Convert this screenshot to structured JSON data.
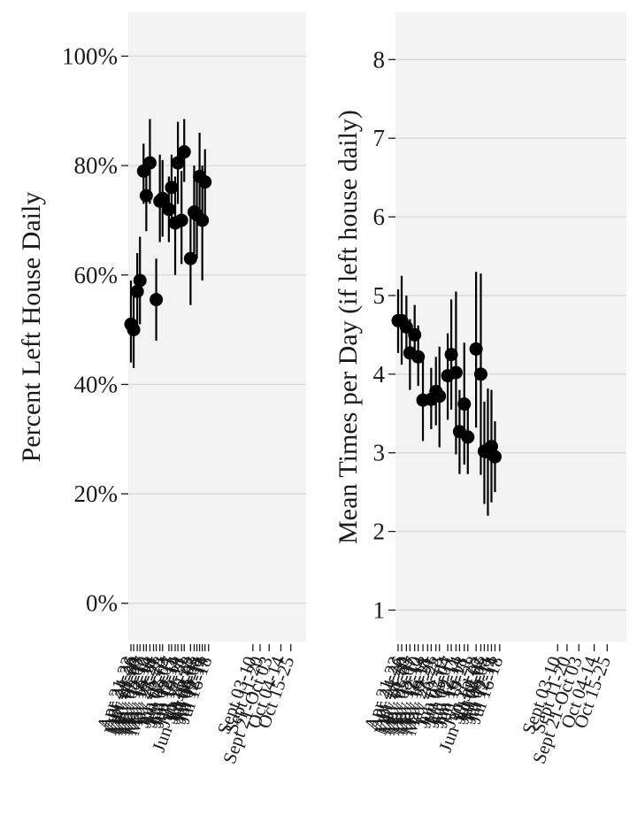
{
  "chart_data": [
    {
      "type": "scatter",
      "ylabel": "Percent Left House Daily",
      "y_format": "percent",
      "ylim": [
        -0.07,
        1.08
      ],
      "yticks": [
        0,
        0.2,
        0.4,
        0.6,
        0.8,
        1.0
      ],
      "ytick_labels": [
        "0%",
        "20%",
        "40%",
        "60%",
        "80%",
        "100%"
      ],
      "grid": true,
      "x_date_range": [
        "2020-04-21",
        "2020-10-29"
      ],
      "points": [
        {
          "date": "2020-04-21",
          "y": 0.51,
          "lo": 0.44,
          "hi": 0.59
        },
        {
          "date": "2020-04-24",
          "y": 0.5,
          "lo": 0.43,
          "hi": 0.57
        },
        {
          "date": "2020-04-28",
          "y": 0.57,
          "lo": 0.5,
          "hi": 0.64
        },
        {
          "date": "2020-05-01",
          "y": 0.59,
          "lo": 0.51,
          "hi": 0.67
        },
        {
          "date": "2020-05-05",
          "y": 0.79,
          "lo": 0.73,
          "hi": 0.84
        },
        {
          "date": "2020-05-08",
          "y": 0.745,
          "lo": 0.68,
          "hi": 0.81
        },
        {
          "date": "2020-05-12",
          "y": 0.805,
          "lo": 0.73,
          "hi": 0.885
        },
        {
          "date": "2020-05-19",
          "y": 0.555,
          "lo": 0.48,
          "hi": 0.63
        },
        {
          "date": "2020-05-23",
          "y": 0.735,
          "lo": 0.66,
          "hi": 0.82
        },
        {
          "date": "2020-05-26",
          "y": 0.74,
          "lo": 0.67,
          "hi": 0.81
        },
        {
          "date": "2020-06-02",
          "y": 0.72,
          "lo": 0.66,
          "hi": 0.78
        },
        {
          "date": "2020-06-05",
          "y": 0.76,
          "lo": 0.7,
          "hi": 0.82
        },
        {
          "date": "2020-06-09",
          "y": 0.695,
          "lo": 0.6,
          "hi": 0.78
        },
        {
          "date": "2020-06-12",
          "y": 0.805,
          "lo": 0.73,
          "hi": 0.88
        },
        {
          "date": "2020-06-16",
          "y": 0.7,
          "lo": 0.62,
          "hi": 0.79
        },
        {
          "date": "2020-06-19",
          "y": 0.825,
          "lo": 0.77,
          "hi": 0.885
        },
        {
          "date": "2020-06-26",
          "y": 0.63,
          "lo": 0.545,
          "hi": 0.72
        },
        {
          "date": "2020-06-30",
          "y": 0.715,
          "lo": 0.64,
          "hi": 0.8
        },
        {
          "date": "2020-07-03",
          "y": 0.71,
          "lo": 0.63,
          "hi": 0.78
        },
        {
          "date": "2020-07-06",
          "y": 0.78,
          "lo": 0.7,
          "hi": 0.86
        },
        {
          "date": "2020-07-09",
          "y": 0.7,
          "lo": 0.59,
          "hi": 0.8
        },
        {
          "date": "2020-07-12",
          "y": 0.77,
          "lo": 0.71,
          "hi": 0.83
        }
      ]
    },
    {
      "type": "scatter",
      "ylabel": "Mean Times per Day (if left house daily)",
      "y_format": "number",
      "ylim": [
        0.6,
        8.6
      ],
      "yticks": [
        1,
        2,
        3,
        4,
        5,
        6,
        7,
        8
      ],
      "ytick_labels": [
        "1",
        "2",
        "3",
        "4",
        "5",
        "6",
        "7",
        "8"
      ],
      "grid": true,
      "x_date_range": [
        "2020-04-21",
        "2020-10-29"
      ],
      "points": [
        {
          "date": "2020-04-21",
          "y": 4.68,
          "lo": 4.27,
          "hi": 5.08
        },
        {
          "date": "2020-04-24",
          "y": 4.68,
          "lo": 4.12,
          "hi": 5.25
        },
        {
          "date": "2020-04-28",
          "y": 4.6,
          "lo": 4.2,
          "hi": 5.0
        },
        {
          "date": "2020-05-01",
          "y": 4.27,
          "lo": 3.8,
          "hi": 4.7
        },
        {
          "date": "2020-05-05",
          "y": 4.5,
          "lo": 4.15,
          "hi": 4.88
        },
        {
          "date": "2020-05-08",
          "y": 4.22,
          "lo": 3.85,
          "hi": 4.62
        },
        {
          "date": "2020-05-12",
          "y": 3.67,
          "lo": 3.15,
          "hi": 4.2
        },
        {
          "date": "2020-05-19",
          "y": 3.68,
          "lo": 3.3,
          "hi": 4.08
        },
        {
          "date": "2020-05-23",
          "y": 3.78,
          "lo": 3.35,
          "hi": 4.22
        },
        {
          "date": "2020-05-26",
          "y": 3.72,
          "lo": 3.07,
          "hi": 4.35
        },
        {
          "date": "2020-06-02",
          "y": 3.98,
          "lo": 3.42,
          "hi": 4.52
        },
        {
          "date": "2020-06-05",
          "y": 4.25,
          "lo": 3.55,
          "hi": 4.95
        },
        {
          "date": "2020-06-09",
          "y": 4.02,
          "lo": 2.98,
          "hi": 5.05
        },
        {
          "date": "2020-06-12",
          "y": 3.27,
          "lo": 2.73,
          "hi": 3.8
        },
        {
          "date": "2020-06-16",
          "y": 3.62,
          "lo": 2.85,
          "hi": 4.4
        },
        {
          "date": "2020-06-19",
          "y": 3.2,
          "lo": 2.73,
          "hi": 3.65
        },
        {
          "date": "2020-06-26",
          "y": 4.32,
          "lo": 3.32,
          "hi": 5.3
        },
        {
          "date": "2020-06-30",
          "y": 4.0,
          "lo": 2.72,
          "hi": 5.28
        },
        {
          "date": "2020-07-03",
          "y": 3.02,
          "lo": 2.35,
          "hi": 3.65
        },
        {
          "date": "2020-07-06",
          "y": 3.01,
          "lo": 2.2,
          "hi": 3.82
        },
        {
          "date": "2020-07-09",
          "y": 3.08,
          "lo": 2.37,
          "hi": 3.8
        },
        {
          "date": "2020-07-12",
          "y": 2.95,
          "lo": 2.5,
          "hi": 3.4
        }
      ]
    }
  ],
  "x_tick_labels": [
    "Apr 21-23",
    "Apr 24-26",
    "Apr 28-30",
    "May 01-03",
    "May 05-07",
    "May 08-10",
    "May 12-14",
    "May 16-18",
    "May 19-21",
    "May 23-25",
    "May 26-28",
    "Jun 02-04",
    "Jun 05-07",
    "Jun 09-11",
    "Jun 12-14",
    "Jun 16-18",
    "Jun 19-21",
    "Jun 26-28",
    "Jun 30-Jul 02",
    "Jul 03-05",
    "Jul 06-08",
    "Jul 09-11",
    "Jul 12-14",
    "Jul 16-18",
    "Sept 03-10",
    "Sept 11-20",
    "Sept 21-Oct 03",
    "Oct 04-14",
    "Oct 15-25"
  ],
  "x_tick_dates": [
    "2020-04-21",
    "2020-04-24",
    "2020-04-28",
    "2020-05-01",
    "2020-05-05",
    "2020-05-08",
    "2020-05-12",
    "2020-05-16",
    "2020-05-19",
    "2020-05-23",
    "2020-05-26",
    "2020-06-02",
    "2020-06-05",
    "2020-06-09",
    "2020-06-12",
    "2020-06-16",
    "2020-06-19",
    "2020-06-26",
    "2020-06-30",
    "2020-07-03",
    "2020-07-06",
    "2020-07-09",
    "2020-07-12",
    "2020-07-16",
    "2020-09-03",
    "2020-09-11",
    "2020-09-21",
    "2020-10-04",
    "2020-10-15"
  ],
  "style": {
    "panel_bg": "#f3f3f3",
    "grid_color": "#d9d9d9",
    "point_color": "#000000",
    "text_color": "#1a1a1a"
  }
}
